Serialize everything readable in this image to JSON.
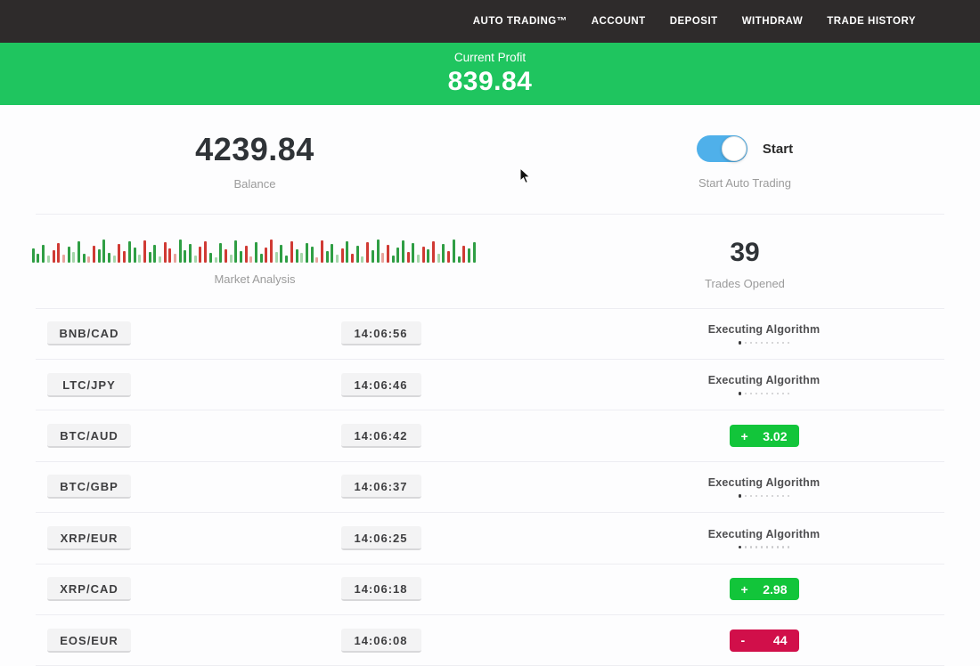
{
  "nav": {
    "items": [
      "AUTO TRADING™",
      "ACCOUNT",
      "DEPOSIT",
      "WITHDRAW",
      "TRADE HISTORY"
    ]
  },
  "profit_banner": {
    "label": "Current Profit",
    "value": "839.84"
  },
  "stats": {
    "balance": {
      "value": "4239.84",
      "label": "Balance"
    },
    "auto_trading": {
      "toggle_label": "Start",
      "label": "Start Auto Trading",
      "toggle_state": "on"
    },
    "market_analysis": {
      "label": "Market Analysis",
      "bar_colors": {
        "g": "#2f9e44",
        "r": "#d03a34",
        "lg": "#a5d6aa",
        "lr": "#e8a49d"
      },
      "bars": [
        "16g",
        "10g",
        "20g",
        "8lg",
        "14r",
        "22r",
        "9lr",
        "18g",
        "12lg",
        "24g",
        "10g",
        "7lr",
        "19r",
        "15g",
        "26g",
        "11g",
        "8lg",
        "21r",
        "13r",
        "24g",
        "17g",
        "9lg",
        "25r",
        "12g",
        "20g",
        "7lg",
        "23r",
        "16r",
        "10lr",
        "26g",
        "14g",
        "21g",
        "8lg",
        "18r",
        "24r",
        "11g",
        "6lg",
        "22g",
        "15r",
        "9lg",
        "25g",
        "13g",
        "19r",
        "7lr",
        "23g",
        "10g",
        "17r",
        "26r",
        "12lg",
        "20g",
        "8g",
        "24r",
        "15g",
        "11lg",
        "22g",
        "18g",
        "6lr",
        "25r",
        "13g",
        "21g",
        "9lg",
        "16r",
        "24g",
        "10r",
        "19g",
        "7lg",
        "23r",
        "14g",
        "26g",
        "11lr",
        "20r",
        "8g",
        "17g",
        "25g",
        "12r",
        "22g",
        "9lg",
        "18r",
        "15g",
        "24r",
        "10lg",
        "21g",
        "13r",
        "26g",
        "7g",
        "19r",
        "16g",
        "23g"
      ]
    },
    "trades_opened": {
      "value": "39",
      "label": "Trades Opened"
    }
  },
  "trades": [
    {
      "pair": "BNB/CAD",
      "time": "14:06:56",
      "status": "executing",
      "status_text": "Executing Algorithm"
    },
    {
      "pair": "LTC/JPY",
      "time": "14:06:46",
      "status": "executing",
      "status_text": "Executing Algorithm"
    },
    {
      "pair": "BTC/AUD",
      "time": "14:06:42",
      "status": "profit",
      "result_sign": "+",
      "result_value": "3.02"
    },
    {
      "pair": "BTC/GBP",
      "time": "14:06:37",
      "status": "executing",
      "status_text": "Executing Algorithm"
    },
    {
      "pair": "XRP/EUR",
      "time": "14:06:25",
      "status": "executing",
      "status_text": "Executing Algorithm"
    },
    {
      "pair": "XRP/CAD",
      "time": "14:06:18",
      "status": "profit",
      "result_sign": "+",
      "result_value": "2.98"
    },
    {
      "pair": "EOS/EUR",
      "time": "14:06:08",
      "status": "loss",
      "result_sign": "-",
      "result_value": "44"
    }
  ],
  "colors": {
    "nav_bg": "#2e2b2b",
    "banner_green": "#1fc55f",
    "badge_green": "#12c53a",
    "badge_red": "#d10f4a",
    "toggle_blue": "#4fb0ea"
  }
}
